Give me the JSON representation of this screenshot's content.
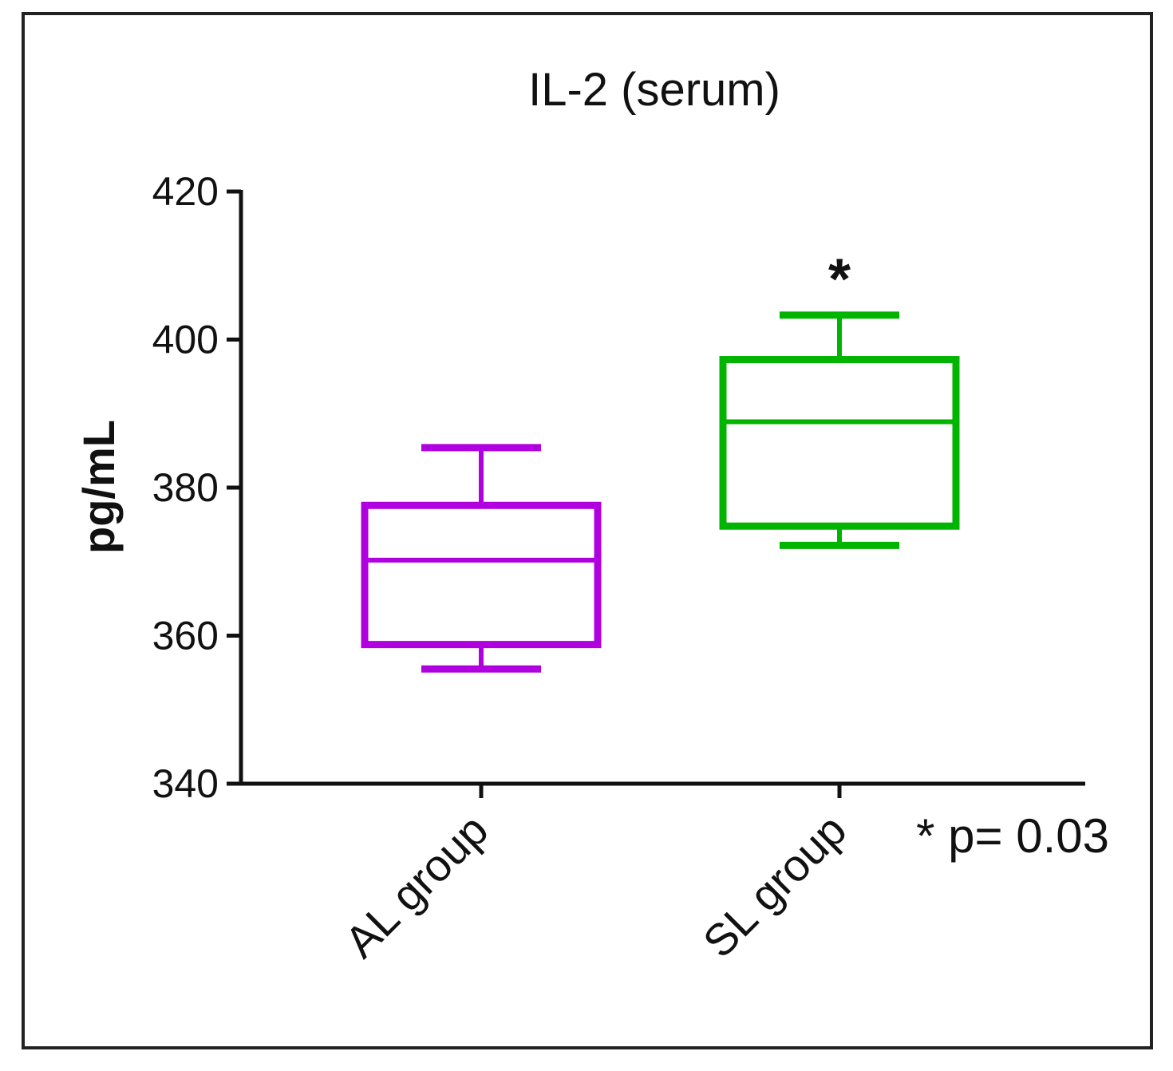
{
  "chart_data": {
    "type": "box",
    "title": "IL-2 (serum)",
    "ylabel": "pg/mL",
    "xlabel": "",
    "ylim": [
      340,
      420
    ],
    "yticks": [
      340,
      360,
      380,
      400,
      420
    ],
    "categories": [
      "AL group",
      "SL group"
    ],
    "boxes": [
      {
        "category": "AL group",
        "whisker_low": 355.5,
        "q1": 358.8,
        "median": 370.2,
        "q3": 377.6,
        "whisker_high": 385.4,
        "color": "#b000e0"
      },
      {
        "category": "SL group",
        "whisker_low": 372.2,
        "q1": 374.8,
        "median": 388.9,
        "q3": 397.3,
        "whisker_high": 403.3,
        "color": "#00b400"
      }
    ],
    "annotations": [
      {
        "text": "*",
        "category": "SL group",
        "y": 409.4
      },
      {
        "text": "* p= 0.03"
      }
    ],
    "grid": false,
    "legend": "none"
  }
}
